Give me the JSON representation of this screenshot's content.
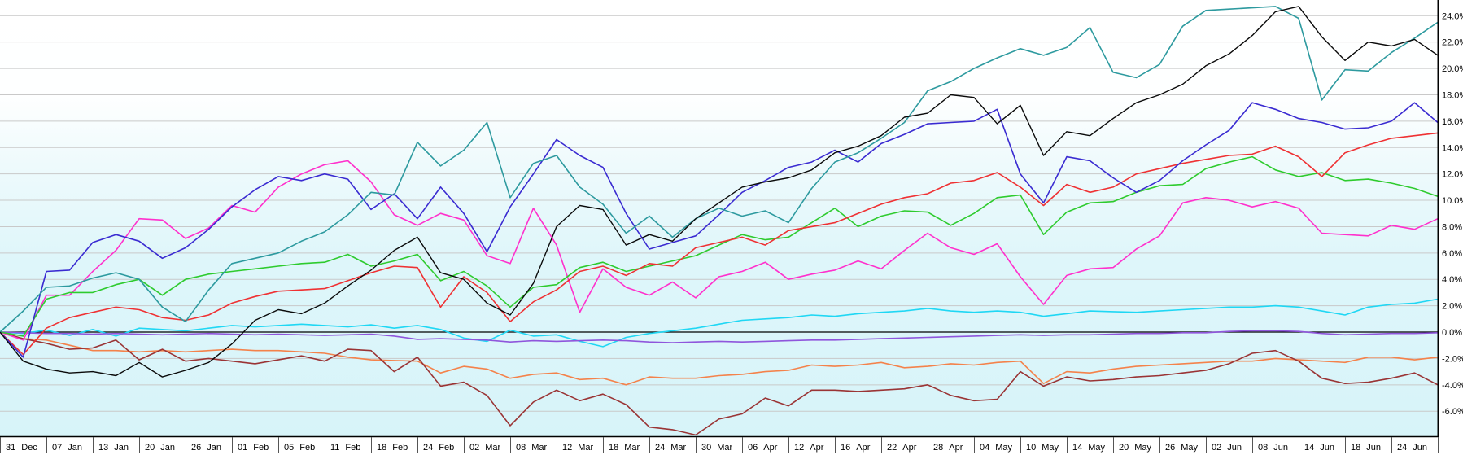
{
  "chart_data": {
    "type": "line",
    "title": "",
    "x_axis": {
      "tick_labels": [
        "31 Dec",
        "07 Jan",
        "13 Jan",
        "20 Jan",
        "26 Jan",
        "01 Feb",
        "05 Feb",
        "11 Feb",
        "18 Feb",
        "24 Feb",
        "02 Mar",
        "08 Mar",
        "12 Mar",
        "18 Mar",
        "24 Mar",
        "30 Mar",
        "06 Apr",
        "12 Apr",
        "16 Apr",
        "22 Apr",
        "28 Apr",
        "04 May",
        "10 May",
        "14 May",
        "20 May",
        "26 May",
        "02 Jun",
        "08 Jun",
        "14 Jun",
        "18 Jun",
        "24 Jun"
      ]
    },
    "y_axis": {
      "unit": "%",
      "tick_values": [
        24,
        22,
        20,
        18,
        16,
        14,
        12,
        10,
        8,
        6,
        4,
        2,
        0,
        -2,
        -4,
        -6
      ],
      "tick_labels": [
        "24.0%",
        "22.0%",
        "20.0%",
        "18.0%",
        "16.0%",
        "14.0%",
        "12.0%",
        "10.0%",
        "8.0%",
        "6.0%",
        "4.0%",
        "2.0%",
        "0.0%",
        "-2.0%",
        "-4.0%",
        "-6.0%"
      ],
      "render_min": -7.9,
      "render_max": 25.19,
      "side": "right"
    },
    "layout": {
      "grid": "horizontal-only",
      "legend": "none",
      "gridline_color": "#c9c9c9",
      "zero_line_color": "#000000",
      "axis_color": "#000000",
      "separator_color": "#555555",
      "background_gradient_stops": [
        [
          "0%",
          "#ffffff"
        ],
        [
          "22%",
          "#feffff"
        ],
        [
          "38%",
          "#eefafc"
        ],
        [
          "60%",
          "#def6fa"
        ],
        [
          "100%",
          "#d7f4f9"
        ]
      ]
    },
    "series": [
      {
        "name": "cyan",
        "color": "#1fd7f4",
        "values": [
          0,
          -0.1,
          0.15,
          -0.25,
          0.2,
          -0.3,
          0.3,
          0.2,
          0.1,
          0.3,
          0.5,
          0.4,
          0.5,
          0.6,
          0.5,
          0.4,
          0.55,
          0.3,
          0.5,
          0.2,
          -0.45,
          -0.7,
          0.15,
          -0.3,
          -0.2,
          -0.7,
          -1.1,
          -0.4,
          -0.1,
          0.1,
          0.3,
          0.6,
          0.9,
          1.0,
          1.1,
          1.3,
          1.2,
          1.4,
          1.5,
          1.6,
          1.8,
          1.6,
          1.5,
          1.6,
          1.5,
          1.2,
          1.4,
          1.6,
          1.55,
          1.5,
          1.6,
          1.7,
          1.8,
          1.9,
          1.9,
          2.0,
          1.9,
          1.6,
          1.3,
          1.9,
          2.1,
          2.2,
          2.5
        ]
      },
      {
        "name": "purple",
        "color": "#8f56dc",
        "values": [
          0,
          -0.05,
          -0.1,
          -0.1,
          -0.15,
          -0.1,
          -0.15,
          -0.2,
          -0.15,
          -0.1,
          -0.15,
          -0.2,
          -0.15,
          -0.2,
          -0.25,
          -0.2,
          -0.15,
          -0.3,
          -0.55,
          -0.5,
          -0.55,
          -0.6,
          -0.75,
          -0.65,
          -0.7,
          -0.65,
          -0.6,
          -0.65,
          -0.75,
          -0.8,
          -0.75,
          -0.7,
          -0.75,
          -0.7,
          -0.65,
          -0.6,
          -0.6,
          -0.55,
          -0.5,
          -0.45,
          -0.4,
          -0.35,
          -0.3,
          -0.25,
          -0.2,
          -0.25,
          -0.2,
          -0.2,
          -0.15,
          -0.1,
          -0.1,
          -0.05,
          -0.05,
          0.05,
          0.1,
          0.1,
          0.05,
          -0.1,
          -0.2,
          -0.15,
          -0.1,
          -0.1,
          -0.05
        ]
      },
      {
        "name": "orange",
        "color": "#f4824b",
        "values": [
          0,
          -0.5,
          -0.6,
          -1.0,
          -1.4,
          -1.4,
          -1.5,
          -1.4,
          -1.5,
          -1.4,
          -1.3,
          -1.4,
          -1.4,
          -1.5,
          -1.6,
          -1.9,
          -2.1,
          -2.15,
          -2.2,
          -3.1,
          -2.6,
          -2.8,
          -3.5,
          -3.2,
          -3.1,
          -3.6,
          -3.5,
          -4.0,
          -3.4,
          -3.5,
          -3.5,
          -3.3,
          -3.2,
          -3.0,
          -2.9,
          -2.5,
          -2.6,
          -2.5,
          -2.3,
          -2.7,
          -2.6,
          -2.4,
          -2.5,
          -2.3,
          -2.2,
          -3.9,
          -3.0,
          -3.1,
          -2.8,
          -2.6,
          -2.5,
          -2.4,
          -2.3,
          -2.2,
          -2.2,
          -2.0,
          -2.1,
          -2.2,
          -2.3,
          -1.9,
          -1.9,
          -2.1,
          -1.9
        ]
      },
      {
        "name": "dark-red",
        "color": "#9a3435",
        "values": [
          0,
          -0.5,
          -0.85,
          -1.3,
          -1.2,
          -0.6,
          -2.1,
          -1.3,
          -2.2,
          -2.0,
          -2.2,
          -2.4,
          -2.1,
          -1.8,
          -2.2,
          -1.3,
          -1.4,
          -3.0,
          -1.9,
          -4.1,
          -3.8,
          -4.8,
          -7.1,
          -5.3,
          -4.4,
          -5.2,
          -4.7,
          -5.5,
          -7.2,
          -7.4,
          -7.8,
          -6.6,
          -6.2,
          -5.0,
          -5.6,
          -4.4,
          -4.4,
          -4.5,
          -4.4,
          -4.3,
          -4.0,
          -4.8,
          -5.2,
          -5.1,
          -3.0,
          -4.1,
          -3.4,
          -3.7,
          -3.6,
          -3.4,
          -3.3,
          -3.1,
          -2.9,
          -2.4,
          -1.6,
          -1.4,
          -2.2,
          -3.5,
          -3.9,
          -3.8,
          -3.5,
          -3.1,
          -4.0
        ]
      },
      {
        "name": "magenta",
        "color": "#ff30cc",
        "values": [
          0,
          -0.6,
          2.8,
          2.8,
          4.6,
          6.2,
          8.6,
          8.5,
          7.1,
          7.9,
          9.6,
          9.1,
          11.0,
          12.0,
          12.7,
          13.0,
          11.4,
          8.9,
          8.1,
          9.0,
          8.5,
          5.8,
          5.2,
          9.4,
          6.6,
          1.5,
          4.8,
          3.4,
          2.8,
          3.8,
          2.6,
          4.2,
          4.6,
          5.3,
          4.0,
          4.4,
          4.7,
          5.4,
          4.8,
          6.2,
          7.5,
          6.4,
          5.9,
          6.7,
          4.2,
          2.1,
          4.3,
          4.8,
          4.9,
          6.3,
          7.3,
          9.8,
          10.2,
          10.0,
          9.5,
          9.9,
          9.4,
          7.5,
          7.4,
          7.3,
          8.1,
          7.8,
          8.6
        ]
      },
      {
        "name": "green",
        "color": "#2ecb2e",
        "values": [
          0,
          -0.3,
          2.5,
          3.0,
          3.0,
          3.6,
          4.0,
          2.8,
          4.0,
          4.4,
          4.6,
          4.8,
          5.0,
          5.2,
          5.3,
          5.9,
          5.0,
          5.4,
          5.9,
          3.9,
          4.6,
          3.5,
          1.9,
          3.4,
          3.6,
          4.9,
          5.3,
          4.6,
          5.0,
          5.4,
          5.8,
          6.6,
          7.4,
          7.0,
          7.2,
          8.3,
          9.4,
          8.0,
          8.8,
          9.2,
          9.1,
          8.1,
          9.0,
          10.2,
          10.4,
          7.4,
          9.1,
          9.8,
          9.9,
          10.6,
          11.1,
          11.2,
          12.4,
          12.9,
          13.3,
          12.3,
          11.8,
          12.1,
          11.5,
          11.6,
          11.3,
          10.9,
          10.3
        ]
      },
      {
        "name": "red",
        "color": "#ef3133",
        "values": [
          0,
          -1.7,
          0.3,
          1.1,
          1.5,
          1.9,
          1.7,
          1.1,
          0.9,
          1.3,
          2.2,
          2.7,
          3.1,
          3.2,
          3.3,
          3.9,
          4.5,
          5.0,
          4.9,
          1.9,
          4.2,
          3.0,
          0.8,
          2.3,
          3.2,
          4.6,
          5.0,
          4.3,
          5.2,
          5.0,
          6.4,
          6.8,
          7.2,
          6.6,
          7.7,
          8.0,
          8.3,
          9.0,
          9.7,
          10.2,
          10.5,
          11.3,
          11.5,
          12.1,
          11.0,
          9.6,
          11.2,
          10.6,
          11.0,
          12.0,
          12.4,
          12.8,
          13.1,
          13.4,
          13.5,
          14.1,
          13.3,
          11.8,
          13.6,
          14.2,
          14.7,
          14.9,
          15.1
        ]
      },
      {
        "name": "blue",
        "color": "#3a2bd1",
        "values": [
          0,
          -1.9,
          4.6,
          4.7,
          6.8,
          7.4,
          6.9,
          5.6,
          6.4,
          7.8,
          9.5,
          10.8,
          11.8,
          11.5,
          12.0,
          11.6,
          9.3,
          10.5,
          8.6,
          11.0,
          9.0,
          6.1,
          9.5,
          12.0,
          14.6,
          13.4,
          12.5,
          9.0,
          6.3,
          6.8,
          7.3,
          8.9,
          10.6,
          11.5,
          12.5,
          12.9,
          13.8,
          12.9,
          14.3,
          15.0,
          15.8,
          15.9,
          16.0,
          16.9,
          12.0,
          9.8,
          13.3,
          13.0,
          11.7,
          10.6,
          11.5,
          13.0,
          14.2,
          15.3,
          17.4,
          16.9,
          16.2,
          15.9,
          15.4,
          15.5,
          16.0,
          17.4,
          15.9
        ]
      },
      {
        "name": "teal",
        "color": "#2d9a9f",
        "values": [
          0,
          1.6,
          3.4,
          3.5,
          4.1,
          4.5,
          4.0,
          1.9,
          0.8,
          3.2,
          5.2,
          5.6,
          6.0,
          6.9,
          7.6,
          8.9,
          10.6,
          10.4,
          14.4,
          12.6,
          13.8,
          15.9,
          10.2,
          12.8,
          13.4,
          11.0,
          9.7,
          7.5,
          8.8,
          7.2,
          8.6,
          9.4,
          8.8,
          9.2,
          8.3,
          10.9,
          12.9,
          13.6,
          14.7,
          15.9,
          18.3,
          19.0,
          20.0,
          20.8,
          21.5,
          21.0,
          21.6,
          23.1,
          19.7,
          19.3,
          20.3,
          23.2,
          24.4,
          24.5,
          24.6,
          24.7,
          23.8,
          17.6,
          19.9,
          19.8,
          21.2,
          22.3,
          23.5
        ]
      },
      {
        "name": "black",
        "color": "#0a0a0a",
        "values": [
          0,
          -2.2,
          -2.8,
          -3.1,
          -3.0,
          -3.3,
          -2.3,
          -3.4,
          -2.9,
          -2.3,
          -0.9,
          0.9,
          1.7,
          1.4,
          2.2,
          3.5,
          4.7,
          6.2,
          7.2,
          4.5,
          4.0,
          2.2,
          1.3,
          3.7,
          8.0,
          9.6,
          9.3,
          6.6,
          7.4,
          6.9,
          8.6,
          9.8,
          11.0,
          11.4,
          11.7,
          12.3,
          13.6,
          14.1,
          14.9,
          16.3,
          16.6,
          18.0,
          17.8,
          15.8,
          17.2,
          13.4,
          15.2,
          14.9,
          16.2,
          17.4,
          18.0,
          18.8,
          20.2,
          21.1,
          22.5,
          24.3,
          24.7,
          22.4,
          20.6,
          22.0,
          21.7,
          22.2,
          21.0
        ]
      }
    ]
  }
}
